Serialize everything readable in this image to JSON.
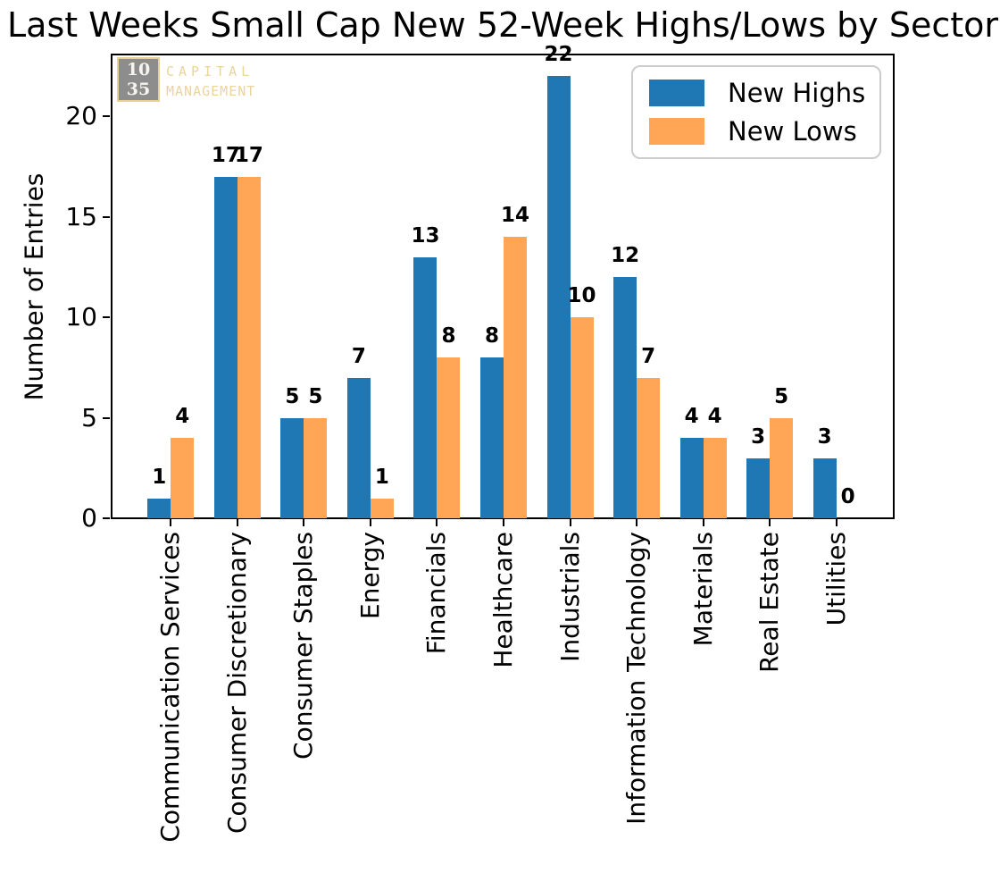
{
  "logo": {
    "number_top": "10",
    "number_bottom": "35",
    "word_top": "CAPITAL",
    "word_bottom": "MANAGEMENT",
    "box_color": "#8d8d8d",
    "gold_color": "#ecd49a"
  },
  "chart_data": {
    "type": "bar",
    "title": "Last Weeks Small Cap New 52-Week Highs/Lows by Sector",
    "xlabel": "",
    "ylabel": "Number of Entries",
    "categories": [
      "Communication Services",
      "Consumer Discretionary",
      "Consumer Staples",
      "Energy",
      "Financials",
      "Healthcare",
      "Industrials",
      "Information Technology",
      "Materials",
      "Real Estate",
      "Utilities"
    ],
    "series": [
      {
        "name": "New Highs",
        "color": "#1f77b4",
        "values": [
          1,
          17,
          5,
          7,
          13,
          8,
          22,
          12,
          4,
          3,
          3
        ]
      },
      {
        "name": "New Lows",
        "color": "#ffa556",
        "values": [
          4,
          17,
          5,
          1,
          8,
          14,
          10,
          7,
          4,
          5,
          0
        ]
      }
    ],
    "yticks": [
      0,
      5,
      10,
      15,
      20
    ],
    "ylim": [
      0,
      23.1
    ],
    "bar_value_labels": true,
    "legend_position": "upper right",
    "grid": false
  }
}
